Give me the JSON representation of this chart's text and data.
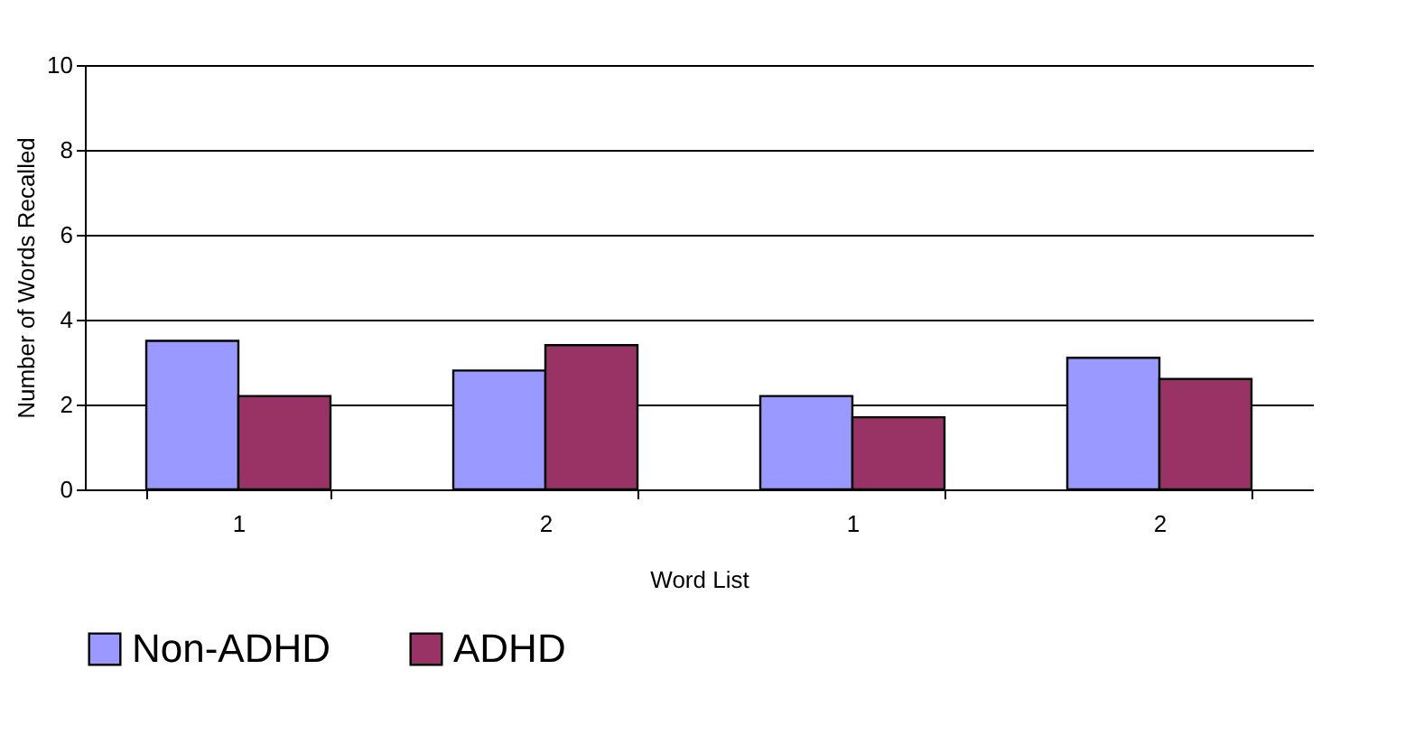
{
  "chart_data": {
    "type": "bar",
    "xlabel": "Word List",
    "ylabel": "Number of Words Recalled",
    "categories": [
      "1",
      "2",
      "1",
      "2"
    ],
    "series": [
      {
        "name": "Non-ADHD",
        "color": "#9999ff",
        "values": [
          3.5,
          2.8,
          2.2,
          3.1
        ]
      },
      {
        "name": "ADHD",
        "color": "#993366",
        "values": [
          2.2,
          3.4,
          1.7,
          2.6
        ]
      }
    ],
    "ylim": [
      0,
      10
    ],
    "yticks": [
      0,
      2,
      4,
      6,
      8,
      10
    ],
    "grid": "y",
    "legend": "bottom"
  }
}
